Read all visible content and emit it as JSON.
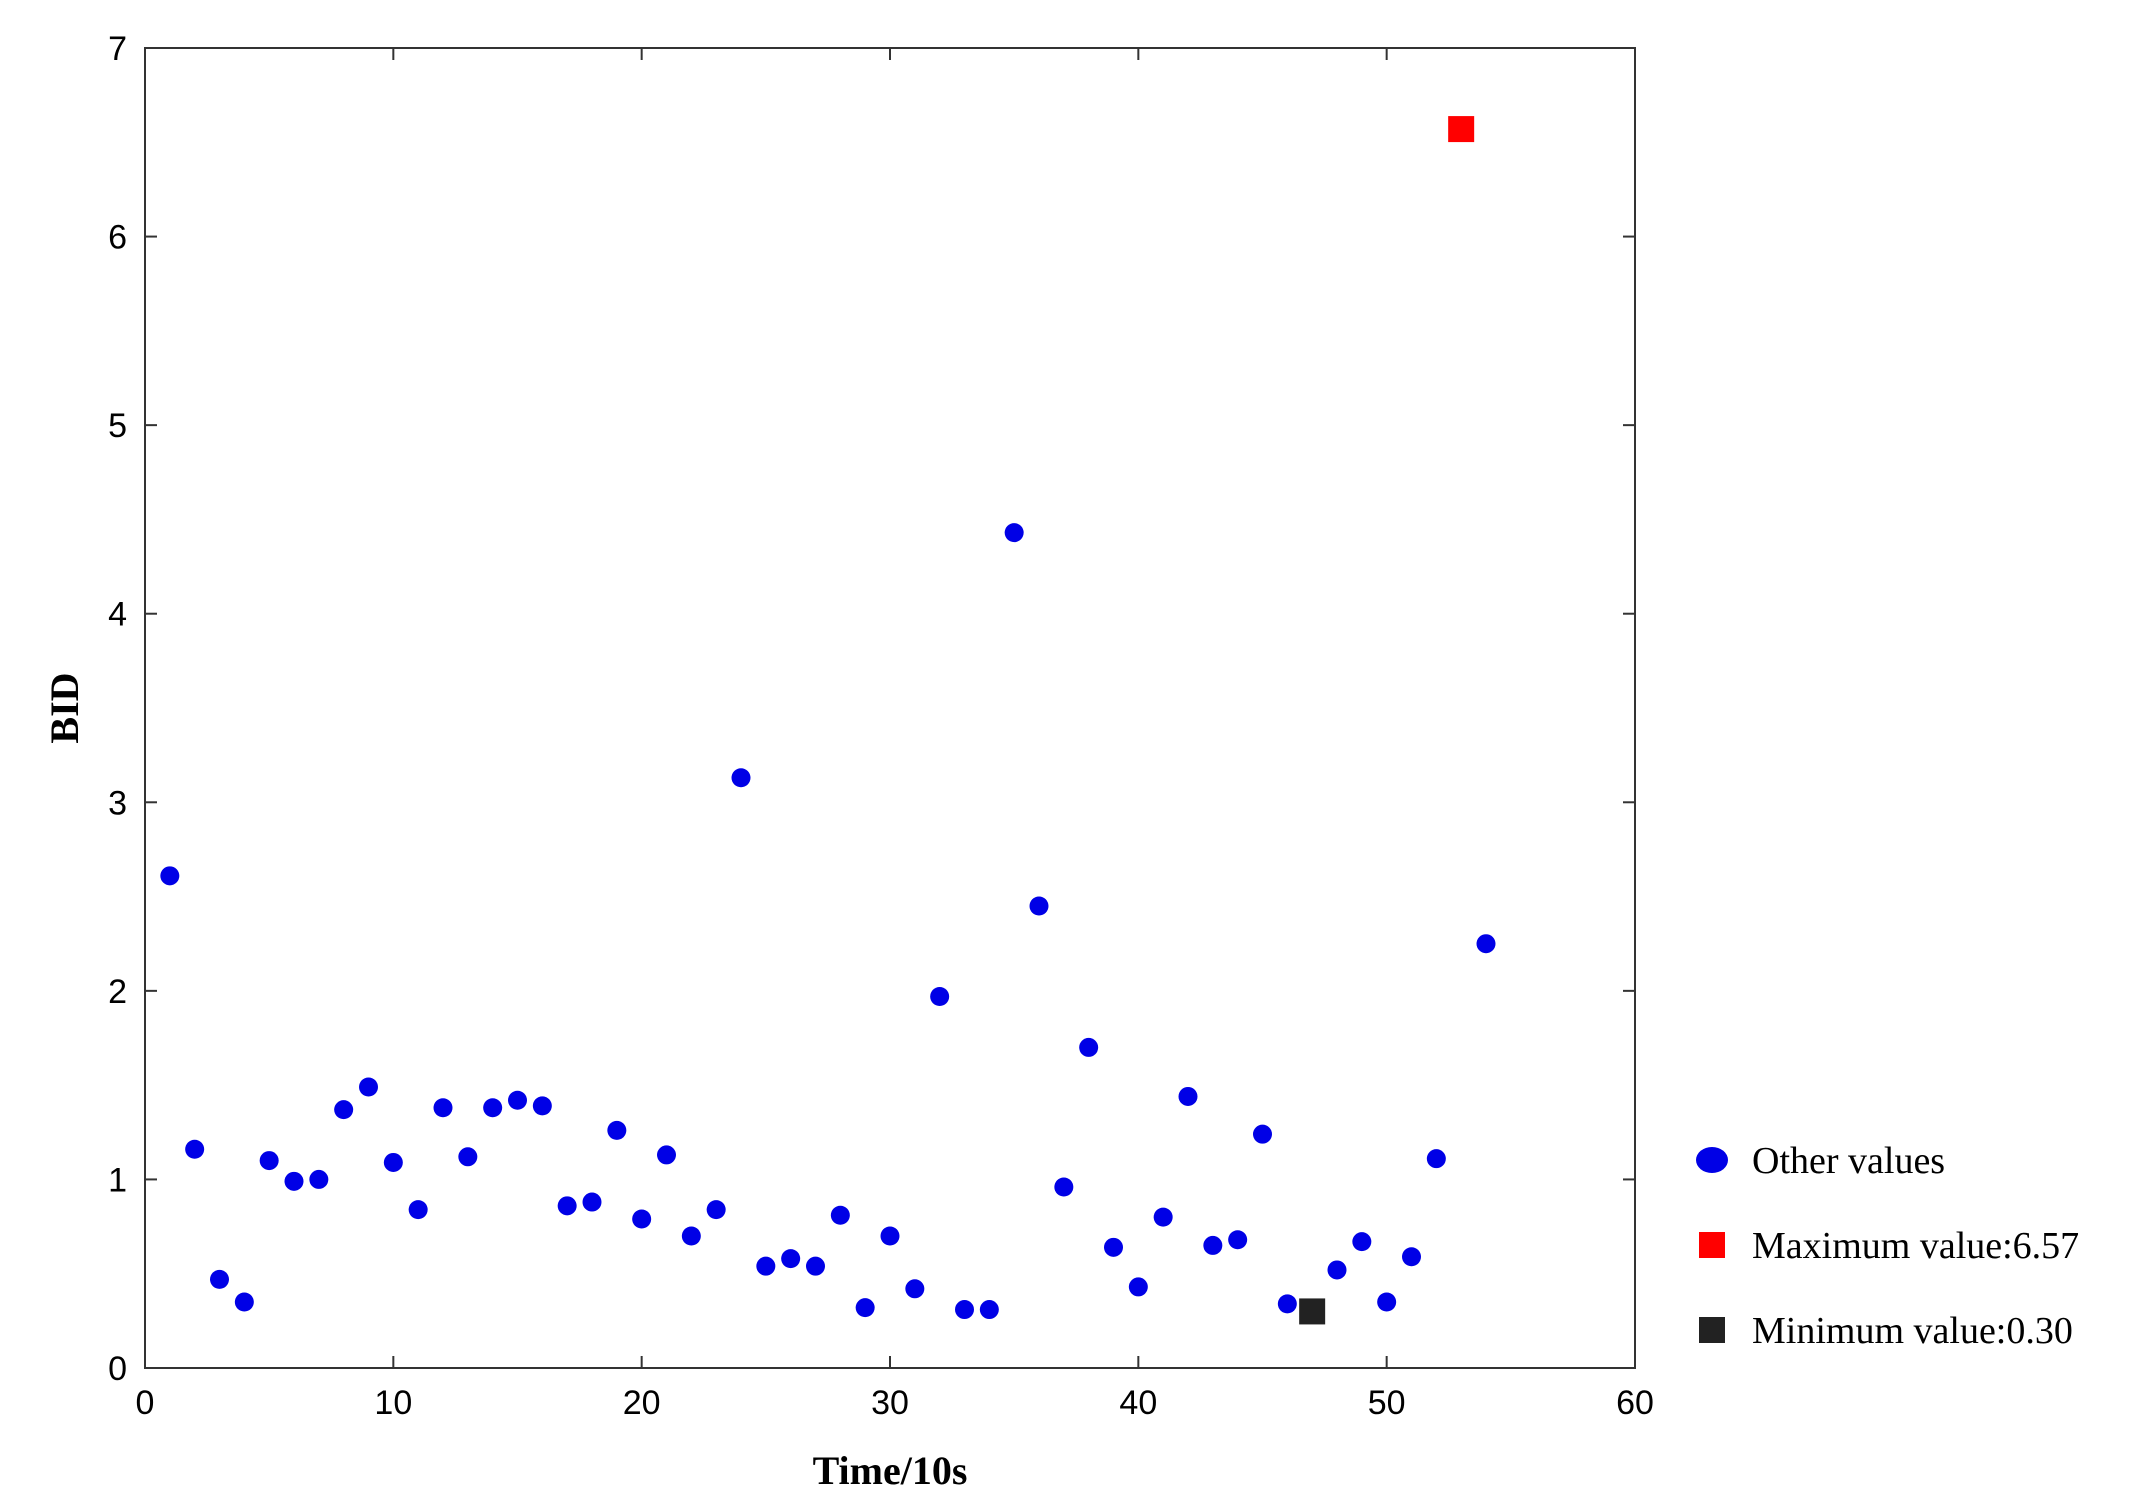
{
  "chart_data": {
    "type": "scatter",
    "xlabel": "Time/10s",
    "ylabel": "BID",
    "xlim": [
      0,
      60
    ],
    "ylim": [
      0,
      7
    ],
    "xticks": [
      0,
      10,
      20,
      30,
      40,
      50,
      60
    ],
    "yticks": [
      0,
      1,
      2,
      3,
      4,
      5,
      6,
      7
    ],
    "grid": false,
    "legend_position": "right-bottom, outside plot",
    "series": [
      {
        "name": "Other values",
        "marker": "circle",
        "color": "#0000e6",
        "points": [
          [
            1,
            2.61
          ],
          [
            2,
            1.16
          ],
          [
            3,
            0.47
          ],
          [
            4,
            0.35
          ],
          [
            5,
            1.1
          ],
          [
            6,
            0.99
          ],
          [
            7,
            1.0
          ],
          [
            8,
            1.37
          ],
          [
            9,
            1.49
          ],
          [
            10,
            1.09
          ],
          [
            11,
            0.84
          ],
          [
            12,
            1.38
          ],
          [
            13,
            1.12
          ],
          [
            14,
            1.38
          ],
          [
            15,
            1.42
          ],
          [
            16,
            1.39
          ],
          [
            17,
            0.86
          ],
          [
            18,
            0.88
          ],
          [
            19,
            1.26
          ],
          [
            20,
            0.79
          ],
          [
            21,
            1.13
          ],
          [
            22,
            0.7
          ],
          [
            23,
            0.84
          ],
          [
            24,
            3.13
          ],
          [
            25,
            0.54
          ],
          [
            26,
            0.58
          ],
          [
            27,
            0.54
          ],
          [
            28,
            0.81
          ],
          [
            29,
            0.32
          ],
          [
            30,
            0.7
          ],
          [
            31,
            0.42
          ],
          [
            32,
            1.97
          ],
          [
            33,
            0.31
          ],
          [
            34,
            0.31
          ],
          [
            35,
            4.43
          ],
          [
            36,
            2.45
          ],
          [
            37,
            0.96
          ],
          [
            38,
            1.7
          ],
          [
            39,
            0.64
          ],
          [
            40,
            0.43
          ],
          [
            41,
            0.8
          ],
          [
            42,
            1.44
          ],
          [
            43,
            0.65
          ],
          [
            44,
            0.68
          ],
          [
            45,
            1.24
          ],
          [
            46,
            0.34
          ],
          [
            48,
            0.52
          ],
          [
            49,
            0.67
          ],
          [
            50,
            0.35
          ],
          [
            51,
            0.59
          ],
          [
            52,
            1.11
          ],
          [
            54,
            2.25
          ]
        ]
      },
      {
        "name": "Maximum value:6.57",
        "marker": "square",
        "color": "#ff0000",
        "points": [
          [
            53,
            6.57
          ]
        ]
      },
      {
        "name": "Minimum value:0.30",
        "marker": "square",
        "color": "#222222",
        "points": [
          [
            47,
            0.3
          ]
        ]
      }
    ]
  }
}
